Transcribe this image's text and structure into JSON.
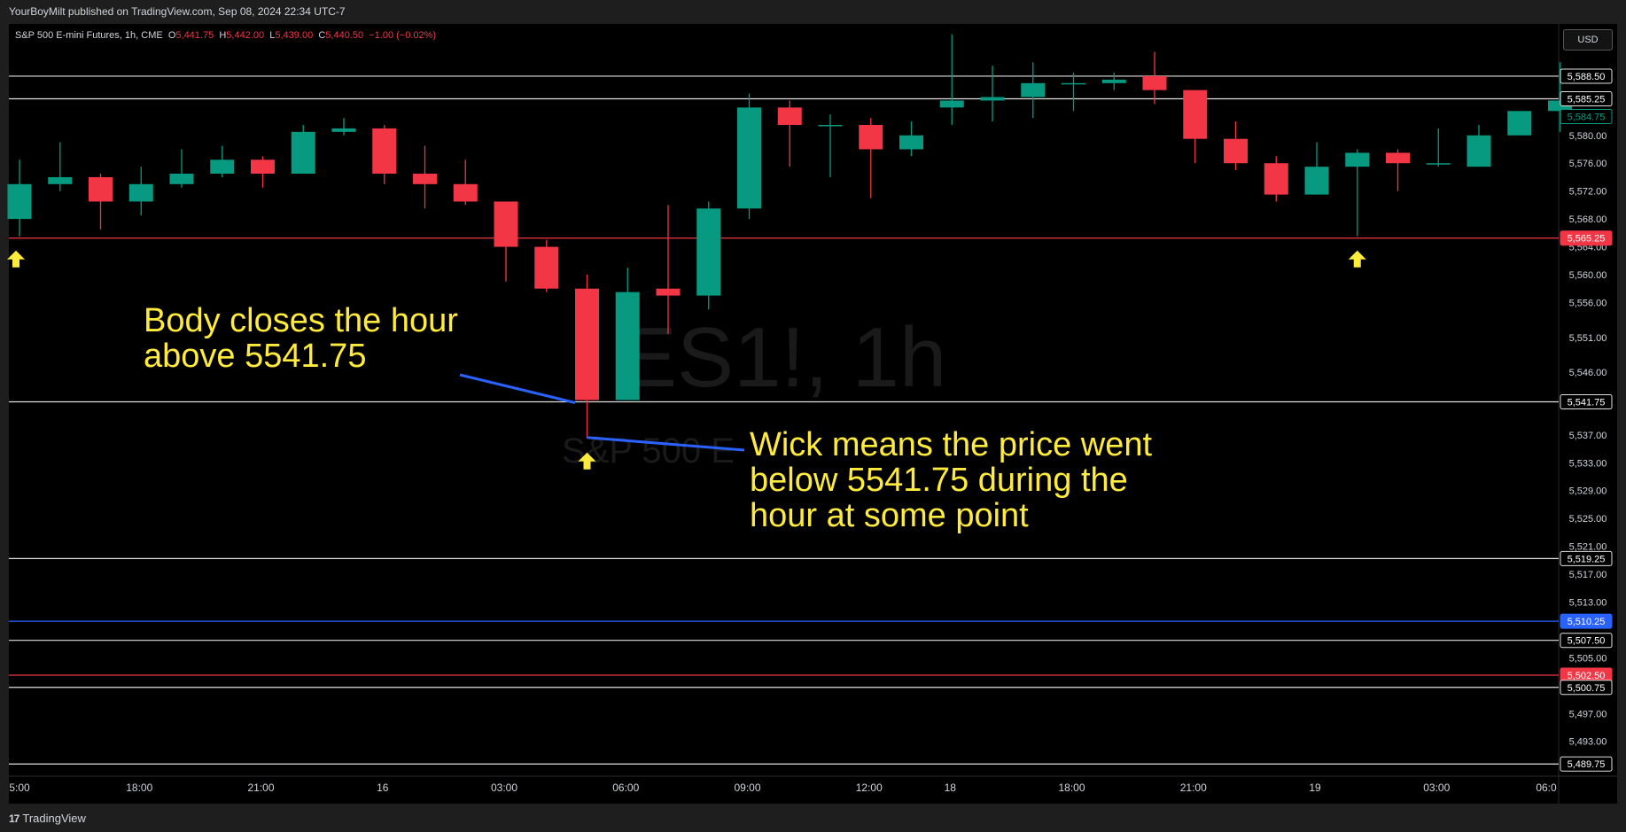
{
  "header": {
    "publisher_text": "YourBoyMilt published on TradingView.com, Sep 08, 2024 22:34 UTC-7"
  },
  "legend": {
    "symbol": "S&P 500 E-mini Futures, 1h, CME",
    "open_label": "O",
    "open": "5,441.75",
    "high_label": "H",
    "high": "5,442.00",
    "low_label": "L",
    "low": "5,439.00",
    "close_label": "C",
    "close": "5,440.50",
    "change": "−1.00 (−0.02%)"
  },
  "currency_button": "USD",
  "watermark": {
    "symbol": "ES1!, 1h",
    "name": "S&P 500 E"
  },
  "annotations": {
    "body_note": [
      "Body closes the hour",
      "above 5541.75"
    ],
    "wick_note": [
      "Wick means the price went",
      "below 5541.75 during the",
      "hour at some point"
    ]
  },
  "footer": {
    "brand": "TradingView",
    "logo": "17"
  },
  "colors": {
    "up": "#089981",
    "down": "#f23645",
    "annotation": "#ffeb3b",
    "arrow": "#ffeb3b",
    "hline": "#e0e0e0",
    "blue_line": "#2962ff",
    "red_line": "#f23645"
  },
  "chart_data": {
    "type": "candlestick",
    "y_range": [
      5488,
      5596
    ],
    "y_ticks": [
      5580.0,
      5576.0,
      5572.0,
      5568.0,
      5564.0,
      5560.0,
      5556.0,
      5551.0,
      5546.0,
      5537.0,
      5533.0,
      5529.0,
      5525.0,
      5521.0,
      5517.0,
      5513.0,
      5505.0,
      5497.0,
      5493.0
    ],
    "y_tick_labels": [
      "5,580.00",
      "5,576.00",
      "5,572.00",
      "5,568.00",
      "5,564.00",
      "5,560.00",
      "5,556.00",
      "5,551.00",
      "5,546.00",
      "5,537.00",
      "5,533.00",
      "5,529.00",
      "5,525.00",
      "5,521.00",
      "5,517.00",
      "5,513.00",
      "5,505.00",
      "5,497.00",
      "5,493.00"
    ],
    "x_tick_labels": [
      {
        "label": "5:00",
        "i": 0
      },
      {
        "label": "18:00",
        "i": 3
      },
      {
        "label": "21:00",
        "i": 6
      },
      {
        "label": "16",
        "i": 9
      },
      {
        "label": "03:00",
        "i": 12
      },
      {
        "label": "06:00",
        "i": 15
      },
      {
        "label": "09:00",
        "i": 18
      },
      {
        "label": "12:00",
        "i": 21
      },
      {
        "label": "18",
        "i": 23
      },
      {
        "label": "18:00",
        "i": 26
      },
      {
        "label": "21:00",
        "i": 29
      },
      {
        "label": "19",
        "i": 32
      },
      {
        "label": "03:00",
        "i": 35
      },
      {
        "label": "06:0",
        "i": 38
      }
    ],
    "horizontal_levels": [
      {
        "price": 5588.5,
        "label": "5,588.50",
        "color": "#e0e0e0",
        "badge": "outline"
      },
      {
        "price": 5585.25,
        "label": "5,585.25",
        "color": "#e0e0e0",
        "badge": "outline"
      },
      {
        "price": 5565.25,
        "label": "5,565.25",
        "color": "#f23645",
        "badge": "filled"
      },
      {
        "price": 5541.75,
        "label": "5,541.75",
        "color": "#e0e0e0",
        "badge": "outline"
      },
      {
        "price": 5519.25,
        "label": "5,519.25",
        "color": "#e0e0e0",
        "badge": "outline"
      },
      {
        "price": 5510.25,
        "label": "5,510.25",
        "color": "#2962ff",
        "badge": "filled"
      },
      {
        "price": 5507.5,
        "label": "5,507.50",
        "color": "#e0e0e0",
        "badge": "outline"
      },
      {
        "price": 5502.5,
        "label": "5,502.50",
        "color": "#f23645",
        "badge": "filled"
      },
      {
        "price": 5500.75,
        "label": "5,500.75",
        "color": "#e0e0e0",
        "badge": "outline"
      },
      {
        "price": 5489.75,
        "label": "5,489.75",
        "color": "#e0e0e0",
        "badge": "outline"
      }
    ],
    "current_price": {
      "price": 5584.75,
      "label": "5,584.75"
    },
    "candles": [
      {
        "o": 5568.0,
        "h": 5576.5,
        "l": 5565.5,
        "c": 5573.0
      },
      {
        "o": 5573.0,
        "h": 5579.0,
        "l": 5572.0,
        "c": 5574.0
      },
      {
        "o": 5574.0,
        "h": 5574.5,
        "l": 5566.5,
        "c": 5570.5
      },
      {
        "o": 5570.5,
        "h": 5575.5,
        "l": 5568.5,
        "c": 5573.0
      },
      {
        "o": 5573.0,
        "h": 5578.0,
        "l": 5572.5,
        "c": 5574.5
      },
      {
        "o": 5574.5,
        "h": 5578.5,
        "l": 5574.0,
        "c": 5576.5
      },
      {
        "o": 5576.5,
        "h": 5577.0,
        "l": 5572.5,
        "c": 5574.5
      },
      {
        "o": 5574.5,
        "h": 5581.5,
        "l": 5574.5,
        "c": 5580.5
      },
      {
        "o": 5580.5,
        "h": 5582.5,
        "l": 5580.0,
        "c": 5581.0
      },
      {
        "o": 5581.0,
        "h": 5581.5,
        "l": 5573.0,
        "c": 5574.5
      },
      {
        "o": 5574.5,
        "h": 5578.5,
        "l": 5569.5,
        "c": 5573.0
      },
      {
        "o": 5573.0,
        "h": 5576.5,
        "l": 5570.0,
        "c": 5570.5
      },
      {
        "o": 5570.5,
        "h": 5570.5,
        "l": 5559.0,
        "c": 5564.0
      },
      {
        "o": 5564.0,
        "h": 5565.0,
        "l": 5557.5,
        "c": 5558.0
      },
      {
        "o": 5558.0,
        "h": 5560.0,
        "l": 5536.5,
        "c": 5542.0
      },
      {
        "o": 5542.0,
        "h": 5561.0,
        "l": 5542.0,
        "c": 5557.5
      },
      {
        "o": 5558.0,
        "h": 5570.0,
        "l": 5551.5,
        "c": 5557.0
      },
      {
        "o": 5557.0,
        "h": 5570.5,
        "l": 5555.0,
        "c": 5569.5
      },
      {
        "o": 5569.5,
        "h": 5586.0,
        "l": 5568.0,
        "c": 5584.0
      },
      {
        "o": 5584.0,
        "h": 5585.0,
        "l": 5575.5,
        "c": 5581.5
      },
      {
        "o": 5581.5,
        "h": 5583.0,
        "l": 5574.0,
        "c": 5581.5
      },
      {
        "o": 5581.5,
        "h": 5582.5,
        "l": 5571.0,
        "c": 5578.0
      },
      {
        "o": 5578.0,
        "h": 5582.0,
        "l": 5577.0,
        "c": 5580.0
      },
      {
        "o": 5584.0,
        "h": 5594.5,
        "l": 5581.5,
        "c": 5585.0
      },
      {
        "o": 5585.0,
        "h": 5590.0,
        "l": 5582.0,
        "c": 5585.5
      },
      {
        "o": 5585.5,
        "h": 5590.5,
        "l": 5582.5,
        "c": 5587.5
      },
      {
        "o": 5587.5,
        "h": 5589.0,
        "l": 5583.5,
        "c": 5587.5
      },
      {
        "o": 5587.5,
        "h": 5589.0,
        "l": 5586.5,
        "c": 5588.0
      },
      {
        "o": 5588.5,
        "h": 5592.0,
        "l": 5584.5,
        "c": 5586.5
      },
      {
        "o": 5586.5,
        "h": 5586.5,
        "l": 5576.0,
        "c": 5579.5
      },
      {
        "o": 5579.5,
        "h": 5582.0,
        "l": 5575.0,
        "c": 5576.0
      },
      {
        "o": 5576.0,
        "h": 5577.0,
        "l": 5570.5,
        "c": 5571.5
      },
      {
        "o": 5571.5,
        "h": 5579.0,
        "l": 5571.5,
        "c": 5575.5
      },
      {
        "o": 5575.5,
        "h": 5578.0,
        "l": 5565.5,
        "c": 5577.5
      },
      {
        "o": 5577.5,
        "h": 5578.0,
        "l": 5572.0,
        "c": 5576.0
      },
      {
        "o": 5576.0,
        "h": 5581.0,
        "l": 5575.5,
        "c": 5576.0
      },
      {
        "o": 5575.5,
        "h": 5581.5,
        "l": 5575.5,
        "c": 5580.0
      },
      {
        "o": 5580.0,
        "h": 5583.5,
        "l": 5580.0,
        "c": 5583.5
      },
      {
        "o": 5583.5,
        "h": 5590.5,
        "l": 5580.5,
        "c": 5585.0
      }
    ],
    "marker_arrows": [
      0,
      14,
      33
    ]
  }
}
